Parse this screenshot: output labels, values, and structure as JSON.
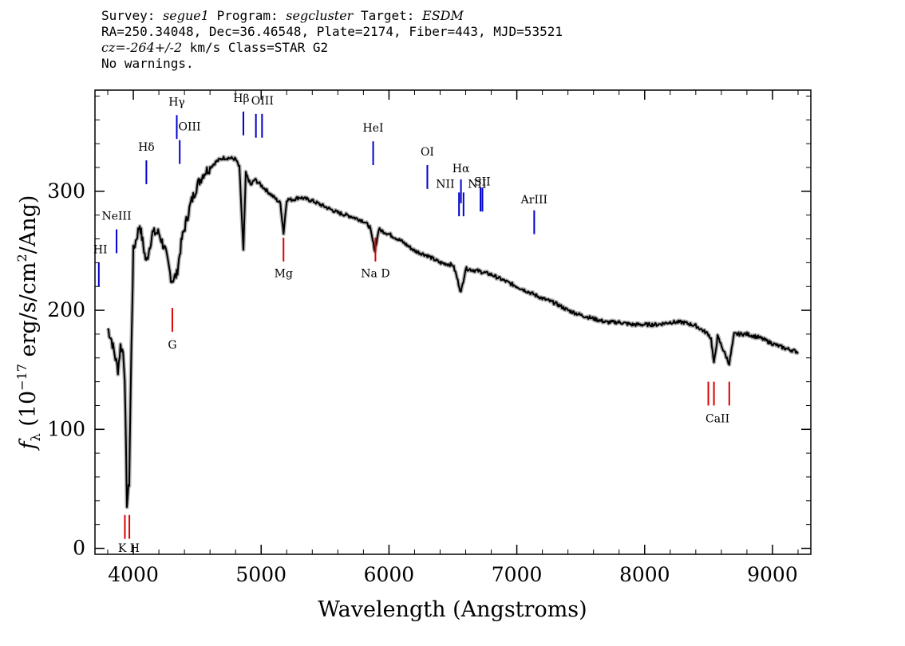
{
  "header": {
    "line1": {
      "survey_label": "Survey: ",
      "survey": "segue1",
      "program_label": " Program: ",
      "program": "segcluster",
      "target_label": " Target: ",
      "target": "ESDM"
    },
    "line2": "RA=250.34048, Dec=36.46548, Plate=2174, Fiber=443, MJD=53521",
    "line3": {
      "cz_label": "cz",
      "cz_value": "=-264+/-2",
      "cz_unit": " km/s Class=STAR G2"
    },
    "line4": "No warnings."
  },
  "chart_data": {
    "type": "line",
    "xlabel": "Wavelength (Angstroms)",
    "ylabel": "f_λ (10^-17 erg/s/cm^2/Ang)",
    "xlim": [
      3700,
      9300
    ],
    "ylim": [
      -5,
      385
    ],
    "x_ticks": [
      4000,
      5000,
      6000,
      7000,
      8000,
      9000
    ],
    "y_ticks": [
      0,
      100,
      200,
      300
    ],
    "series": [
      {
        "x": [
          3800,
          3830,
          3860,
          3880,
          3900,
          3920,
          3933,
          3950,
          3968,
          3985,
          4000,
          4050,
          4101,
          4150,
          4200,
          4250,
          4300,
          4340,
          4380,
          4450,
          4500,
          4550,
          4600,
          4650,
          4700,
          4750,
          4800,
          4830,
          4861,
          4880,
          4920,
          4950,
          5000,
          5050,
          5100,
          5150,
          5175,
          5200,
          5250,
          5300,
          5400,
          5500,
          5600,
          5700,
          5800,
          5850,
          5890,
          5920,
          6000,
          6100,
          6200,
          6300,
          6400,
          6500,
          6520,
          6563,
          6600,
          6700,
          6800,
          6900,
          7000,
          7100,
          7200,
          7300,
          7400,
          7500,
          7600,
          7700,
          7800,
          7900,
          8000,
          8100,
          8200,
          8300,
          8400,
          8498,
          8520,
          8542,
          8570,
          8662,
          8700,
          8800,
          8900,
          9000,
          9100,
          9200
        ],
        "y": [
          185,
          175,
          160,
          150,
          170,
          165,
          145,
          38,
          55,
          170,
          250,
          272,
          240,
          265,
          265,
          250,
          225,
          230,
          260,
          290,
          305,
          315,
          320,
          325,
          328,
          328,
          327,
          320,
          250,
          315,
          305,
          310,
          305,
          300,
          295,
          290,
          265,
          293,
          293,
          295,
          292,
          287,
          282,
          279,
          275,
          270,
          250,
          268,
          264,
          258,
          250,
          246,
          240,
          238,
          232,
          215,
          235,
          233,
          230,
          225,
          220,
          215,
          210,
          206,
          200,
          196,
          193,
          190,
          190,
          188,
          188,
          188,
          190,
          190,
          187,
          180,
          176,
          155,
          178,
          155,
          180,
          180,
          177,
          172,
          168,
          165
        ]
      }
    ]
  },
  "lines": {
    "emission": [
      {
        "label": "HI",
        "x": 3730,
        "y_top": 240,
        "y_bot": 220
      },
      {
        "label": "NeIII",
        "x": 3869,
        "y_top": 268,
        "y_bot": 248
      },
      {
        "label": "Hδ",
        "x": 4102,
        "y_top": 326,
        "y_bot": 306
      },
      {
        "label": "Hγ",
        "x": 4340,
        "y_top": 364,
        "y_bot": 344
      },
      {
        "label": "OIII",
        "x": 4363,
        "y_top": 343,
        "y_bot": 323
      },
      {
        "label": "Hβ",
        "x": 4861,
        "y_top": 367,
        "y_bot": 347
      },
      {
        "label": "OIII",
        "x": 4959,
        "y_top": 365,
        "y_bot": 345
      },
      {
        "label": "OIII",
        "x": 5007,
        "y_top": 365,
        "y_bot": 345
      },
      {
        "label": "HeI",
        "x": 5876,
        "y_top": 342,
        "y_bot": 322
      },
      {
        "label": "OI",
        "x": 6300,
        "y_top": 322,
        "y_bot": 302
      },
      {
        "label": "NII",
        "x": 6548,
        "y_top": 299,
        "y_bot": 279
      },
      {
        "label": "Hα",
        "x": 6563,
        "y_top": 310,
        "y_bot": 290
      },
      {
        "label": "NII",
        "x": 6583,
        "y_top": 299,
        "y_bot": 279
      },
      {
        "label": "SII",
        "x": 6716,
        "y_top": 303,
        "y_bot": 283
      },
      {
        "label": "SII",
        "x": 6731,
        "y_top": 303,
        "y_bot": 283
      },
      {
        "label": "ArIII",
        "x": 7136,
        "y_top": 284,
        "y_bot": 264
      }
    ],
    "absorption": [
      {
        "label": "K",
        "x": 3934,
        "y_top": 28,
        "y_bot": 8
      },
      {
        "label": "H",
        "x": 3969,
        "y_top": 28,
        "y_bot": 8
      },
      {
        "label": "G",
        "x": 4305,
        "y_top": 202,
        "y_bot": 182
      },
      {
        "label": "Mg",
        "x": 5175,
        "y_top": 261,
        "y_bot": 241
      },
      {
        "label": "Na",
        "x": 5894,
        "y_top": 261,
        "y_bot": 241
      },
      {
        "label": "CaII",
        "x": 8498,
        "y_top": 140,
        "y_bot": 120
      },
      {
        "label": "CaII",
        "x": 8542,
        "y_top": 140,
        "y_bot": 120
      },
      {
        "label": "CaII",
        "x": 8662,
        "y_top": 140,
        "y_bot": 120
      }
    ],
    "emission_labels": [
      {
        "text": "HI",
        "x": 3742,
        "y": 248
      },
      {
        "text": "NeIII",
        "x": 3869,
        "y": 276
      },
      {
        "text": "Hδ",
        "x": 4102,
        "y": 334
      },
      {
        "text": "Hγ",
        "x": 4340,
        "y": 372
      },
      {
        "text": "OIII",
        "x": 4440,
        "y": 351
      },
      {
        "text": "Hβ",
        "x": 4845,
        "y": 375
      },
      {
        "text": "OIII",
        "x": 5010,
        "y": 373
      },
      {
        "text": "HeI",
        "x": 5876,
        "y": 350
      },
      {
        "text": "OI",
        "x": 6300,
        "y": 330
      },
      {
        "text": "NII",
        "x": 6440,
        "y": 303
      },
      {
        "text": "Hα",
        "x": 6563,
        "y": 316
      },
      {
        "text": "NII",
        "x": 6690,
        "y": 303
      },
      {
        "text": "SII",
        "x": 6730,
        "y": 305
      },
      {
        "text": "ArIII",
        "x": 7136,
        "y": 290
      }
    ],
    "absorption_labels": [
      {
        "text": "K H",
        "x": 3965,
        "y": -3
      },
      {
        "text": "G",
        "x": 4305,
        "y": 168
      },
      {
        "text": "Mg",
        "x": 5175,
        "y": 228
      },
      {
        "text": "Na  D",
        "x": 5894,
        "y": 228
      },
      {
        "text": "CaII",
        "x": 8570,
        "y": 106
      }
    ],
    "emission_color": "#0000cc",
    "absorption_color": "#dd0000",
    "spectrum_color": "#000000",
    "error_color": "#b0b0b0"
  }
}
